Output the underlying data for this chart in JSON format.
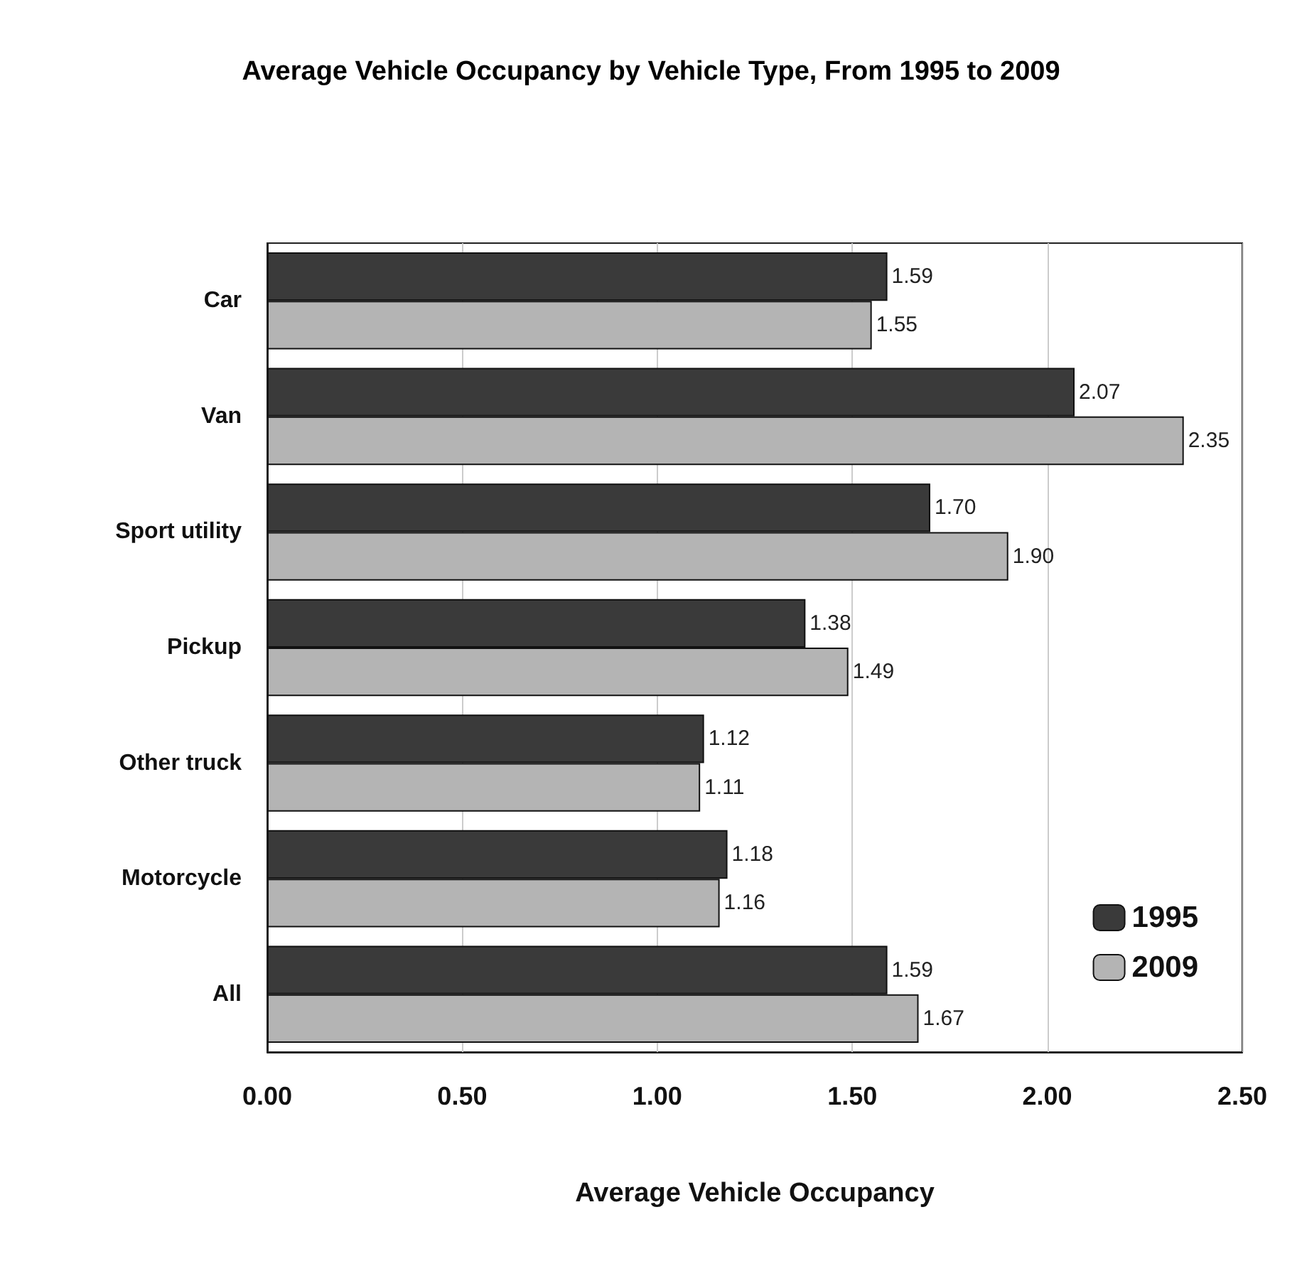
{
  "chart_data": {
    "type": "bar",
    "orientation": "horizontal",
    "title": "Average Vehicle Occupancy by Vehicle Type, From 1995 to 2009",
    "xlabel": "Average Vehicle Occupancy",
    "categories": [
      "Car",
      "Van",
      "Sport utility",
      "Pickup",
      "Other truck",
      "Motorcycle",
      "All"
    ],
    "series": [
      {
        "name": "1995",
        "color": "#3a3a3a",
        "values": [
          1.59,
          2.07,
          1.7,
          1.38,
          1.12,
          1.18,
          1.59
        ],
        "value_labels": [
          "1.59",
          "2.07",
          "1.70",
          "1.38",
          "1.12",
          "1.18",
          "1.59"
        ]
      },
      {
        "name": "2009",
        "color": "#b4b4b4",
        "values": [
          1.55,
          2.35,
          1.9,
          1.49,
          1.11,
          1.16,
          1.67
        ],
        "value_labels": [
          "1.55",
          "2.35",
          "1.90",
          "1.49",
          "1.11",
          "1.16",
          "1.67"
        ]
      }
    ],
    "xlim": [
      0,
      2.5
    ],
    "xticks": [
      {
        "value": 0,
        "label": "0.00"
      },
      {
        "value": 0.5,
        "label": "0.50"
      },
      {
        "value": 1,
        "label": "1.00"
      },
      {
        "value": 1.5,
        "label": "1.50"
      },
      {
        "value": 2,
        "label": "2.00"
      },
      {
        "value": 2.5,
        "label": "2.50"
      }
    ],
    "grid": "x",
    "legend": "bottom right"
  }
}
